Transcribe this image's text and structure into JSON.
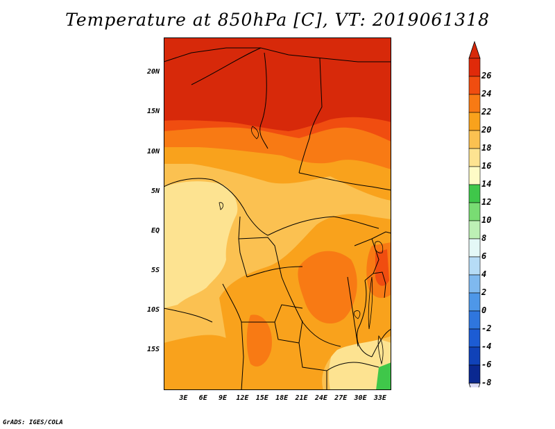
{
  "title": "Temperature at 850hPa [C], VT: 2019061318",
  "credit": "GrADS: IGES/COLA",
  "axes": {
    "lat_labels": [
      {
        "text": "20N",
        "lat": 20
      },
      {
        "text": "15N",
        "lat": 15
      },
      {
        "text": "10N",
        "lat": 10
      },
      {
        "text": "5N",
        "lat": 5
      },
      {
        "text": "EQ",
        "lat": 0
      },
      {
        "text": "5S",
        "lat": -5
      },
      {
        "text": "10S",
        "lat": -10
      },
      {
        "text": "15S",
        "lat": -15
      }
    ],
    "lon_labels": [
      {
        "text": "3E",
        "lon": 3
      },
      {
        "text": "6E",
        "lon": 6
      },
      {
        "text": "9E",
        "lon": 9
      },
      {
        "text": "12E",
        "lon": 12
      },
      {
        "text": "15E",
        "lon": 15
      },
      {
        "text": "18E",
        "lon": 18
      },
      {
        "text": "21E",
        "lon": 21
      },
      {
        "text": "24E",
        "lon": 24
      },
      {
        "text": "27E",
        "lon": 27
      },
      {
        "text": "30E",
        "lon": 30
      },
      {
        "text": "33E",
        "lon": 33
      }
    ],
    "lon_range": [
      0,
      34.7
    ],
    "lat_range": [
      -20,
      24.5
    ]
  },
  "colorbar": {
    "levels": [
      {
        "label": "26",
        "color": "#e02a0a"
      },
      {
        "label": "24",
        "color": "#f04d10"
      },
      {
        "label": "22",
        "color": "#f87a14"
      },
      {
        "label": "20",
        "color": "#f9a21c"
      },
      {
        "label": "18",
        "color": "#fbc151"
      },
      {
        "label": "16",
        "color": "#fde391"
      },
      {
        "label": "14",
        "color": "#fefbc6"
      },
      {
        "label": "12",
        "color": "#3fc74a"
      },
      {
        "label": "10",
        "color": "#79dc73"
      },
      {
        "label": "8",
        "color": "#bdf0b5"
      },
      {
        "label": "6",
        "color": "#e4f8f7"
      },
      {
        "label": "4",
        "color": "#b6dcf6"
      },
      {
        "label": "2",
        "color": "#7fb9ef"
      },
      {
        "label": "0",
        "color": "#4e97e8"
      },
      {
        "label": "-2",
        "color": "#2f76de"
      },
      {
        "label": "-4",
        "color": "#1c5cd4"
      },
      {
        "label": "-6",
        "color": "#1042b8"
      },
      {
        "label": "-8",
        "color": "#0a2890"
      }
    ],
    "over_color": "#d7290a",
    "under_color": "#dcdcf6"
  }
}
